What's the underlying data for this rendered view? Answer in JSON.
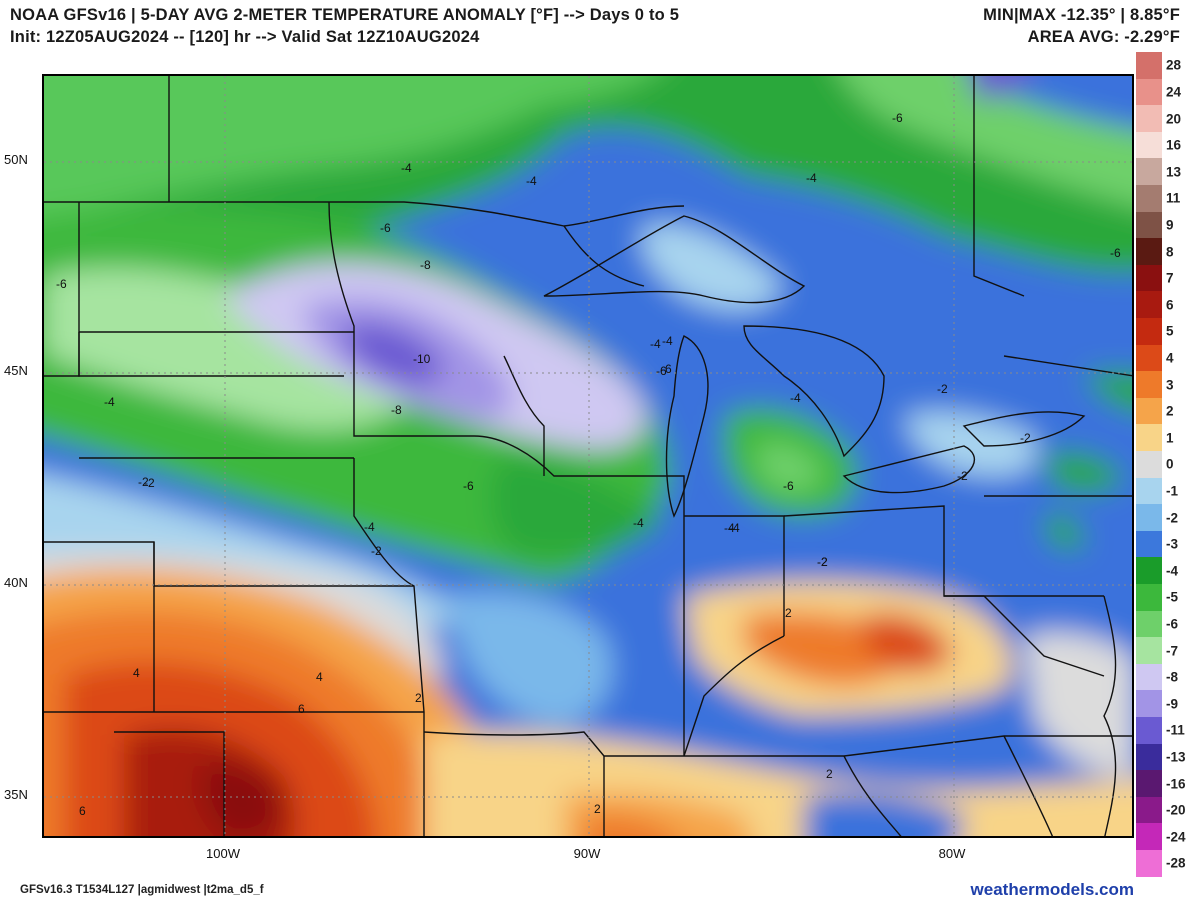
{
  "header": {
    "title_line1": "NOAA GFSv16 |  5-DAY AVG 2-METER TEMPERATURE ANOMALY [°F] --> Days 0 to 5",
    "title_line2": "Init: 12Z05AUG2024 -- [120] hr --> Valid Sat 12Z10AUG2024",
    "stat_line1": "MIN|MAX -12.35° | 8.85°F",
    "stat_line2": "AREA AVG: -2.29°F"
  },
  "axes": {
    "lat_labels": [
      "50N",
      "45N",
      "40N",
      "35N"
    ],
    "lon_labels": [
      "100W",
      "90W",
      "80W"
    ]
  },
  "legend": {
    "labels": [
      "28",
      "24",
      "20",
      "16",
      "13",
      "11",
      "9",
      "8",
      "7",
      "6",
      "5",
      "4",
      "3",
      "2",
      "1",
      "0",
      "-1",
      "-2",
      "-3",
      "-4",
      "-5",
      "-6",
      "-7",
      "-8",
      "-9",
      "-11",
      "-13",
      "-16",
      "-20",
      "-24",
      "-28"
    ],
    "colors": [
      "#d4706a",
      "#e8918a",
      "#f2bcb4",
      "#f6ded8",
      "#c8a89e",
      "#a47c70",
      "#7e5246",
      "#5a1a12",
      "#8a1010",
      "#a81a10",
      "#c42a10",
      "#dc4a18",
      "#ee7a2a",
      "#f5a44a",
      "#f8d488",
      "#dcdcdc",
      "#a8d4ee",
      "#7ab8ea",
      "#3c78dc",
      "#1a9c2a",
      "#3cb83c",
      "#6ed06a",
      "#a6e4a0",
      "#cfc8f2",
      "#a294e6",
      "#6a5ad2",
      "#3a2c9c",
      "#5a1870",
      "#8a1a8a",
      "#c428b8",
      "#ee6ed6"
    ]
  },
  "map": {
    "contour_labels": [
      "-4",
      "-4",
      "-4",
      "-6",
      "-6",
      "-6",
      "-6",
      "-8",
      "-10",
      "-8",
      "-4",
      "-6",
      "-4",
      "-2",
      "-6",
      "-4",
      "-6",
      "-4",
      "-2",
      "-2",
      "-2",
      "-2",
      "-2",
      "-4",
      "-4",
      "-2",
      "4",
      "4",
      "6",
      "6",
      "2",
      "2",
      "2",
      "2",
      "-4",
      "-6",
      "-4",
      "-2"
    ]
  },
  "footer": {
    "left": "GFSv16.3 T1534L127 |agmidwest |t2ma_d5_f",
    "right": "weathermodels.com"
  }
}
